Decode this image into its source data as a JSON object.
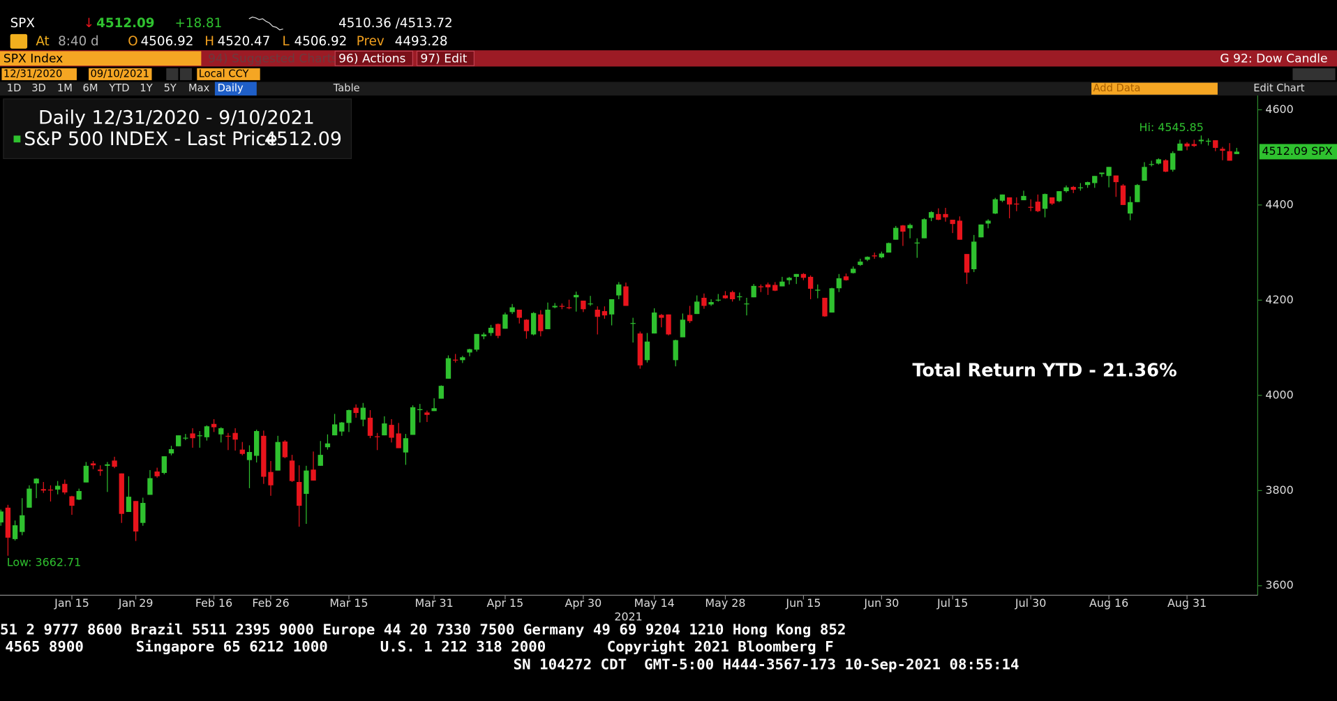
{
  "header": {
    "ticker": "SPX",
    "arrow": "↓",
    "last": "4512.09",
    "change": "+18.81",
    "bid_ask": "4510.36 /4513.72",
    "at": "At",
    "time": "8:40 d",
    "open_label": "O",
    "open": "4506.92",
    "high_label": "H",
    "high": "4520.47",
    "low_label": "L",
    "low": "4506.92",
    "prev_label": "Prev",
    "prev": "4493.28"
  },
  "toolbar": {
    "security": "SPX Index",
    "suggested": "94) Suggested Charts",
    "actions": "96) Actions",
    "edit": "97) Edit",
    "template": "G 92: Dow Candle",
    "start_date": "12/31/2020",
    "end_date": "09/10/2021",
    "currency": "Local CCY",
    "periods": [
      "1D",
      "3D",
      "1M",
      "6M",
      "YTD",
      "1Y",
      "5Y",
      "Max"
    ],
    "frequency": "Daily",
    "table": "Table",
    "add_data": "Add Data",
    "edit_chart": "Edit Chart"
  },
  "chart_data": {
    "type": "candlestick",
    "legend_title": "Daily 12/31/2020 - 9/10/2021",
    "series_name": "S&P 500 INDEX - Last Price",
    "last_value_label": "4512.09",
    "last_price_tag": "4512.09 SPX",
    "hi_label": "Hi: 4545.85",
    "low_label": "Low: 3662.71",
    "annotation": "Total Return YTD - 21.36%",
    "x_year_label": "2021",
    "up_color": "#2fc12f",
    "down_color": "#e8141c",
    "grid": false,
    "ylim": [
      3580,
      4630
    ],
    "yticks": [
      3600,
      3800,
      4000,
      4200,
      4400,
      4600
    ],
    "xticks": [
      {
        "value": "2021-01-15",
        "label": "Jan 15"
      },
      {
        "value": "2021-01-29",
        "label": "Jan 29"
      },
      {
        "value": "2021-02-16",
        "label": "Feb 16"
      },
      {
        "value": "2021-02-26",
        "label": "Feb 26"
      },
      {
        "value": "2021-03-15",
        "label": "Mar 15"
      },
      {
        "value": "2021-03-31",
        "label": "Mar 31"
      },
      {
        "value": "2021-04-15",
        "label": "Apr 15"
      },
      {
        "value": "2021-04-30",
        "label": "Apr 30"
      },
      {
        "value": "2021-05-14",
        "label": "May 14"
      },
      {
        "value": "2021-05-28",
        "label": "May 28"
      },
      {
        "value": "2021-06-15",
        "label": "Jun 15"
      },
      {
        "value": "2021-06-30",
        "label": "Jun 30"
      },
      {
        "value": "2021-07-15",
        "label": "Jul 15"
      },
      {
        "value": "2021-07-30",
        "label": "Jul 30"
      },
      {
        "value": "2021-08-16",
        "label": "Aug 16"
      },
      {
        "value": "2021-08-31",
        "label": "Aug 31"
      }
    ],
    "x": [
      "2020-12-31",
      "2021-01-04",
      "2021-01-05",
      "2021-01-06",
      "2021-01-07",
      "2021-01-08",
      "2021-01-11",
      "2021-01-12",
      "2021-01-13",
      "2021-01-14",
      "2021-01-15",
      "2021-01-19",
      "2021-01-20",
      "2021-01-21",
      "2021-01-22",
      "2021-01-25",
      "2021-01-26",
      "2021-01-27",
      "2021-01-28",
      "2021-01-29",
      "2021-02-01",
      "2021-02-02",
      "2021-02-03",
      "2021-02-04",
      "2021-02-05",
      "2021-02-08",
      "2021-02-09",
      "2021-02-10",
      "2021-02-11",
      "2021-02-12",
      "2021-02-16",
      "2021-02-17",
      "2021-02-18",
      "2021-02-19",
      "2021-02-22",
      "2021-02-23",
      "2021-02-24",
      "2021-02-25",
      "2021-02-26",
      "2021-03-01",
      "2021-03-02",
      "2021-03-03",
      "2021-03-04",
      "2021-03-05",
      "2021-03-08",
      "2021-03-09",
      "2021-03-10",
      "2021-03-11",
      "2021-03-12",
      "2021-03-15",
      "2021-03-16",
      "2021-03-17",
      "2021-03-18",
      "2021-03-19",
      "2021-03-22",
      "2021-03-23",
      "2021-03-24",
      "2021-03-25",
      "2021-03-26",
      "2021-03-29",
      "2021-03-30",
      "2021-03-31",
      "2021-04-01",
      "2021-04-05",
      "2021-04-06",
      "2021-04-07",
      "2021-04-08",
      "2021-04-09",
      "2021-04-12",
      "2021-04-13",
      "2021-04-14",
      "2021-04-15",
      "2021-04-16",
      "2021-04-19",
      "2021-04-20",
      "2021-04-21",
      "2021-04-22",
      "2021-04-23",
      "2021-04-26",
      "2021-04-27",
      "2021-04-28",
      "2021-04-29",
      "2021-04-30",
      "2021-05-03",
      "2021-05-04",
      "2021-05-05",
      "2021-05-06",
      "2021-05-07",
      "2021-05-10",
      "2021-05-11",
      "2021-05-12",
      "2021-05-13",
      "2021-05-14",
      "2021-05-17",
      "2021-05-18",
      "2021-05-19",
      "2021-05-20",
      "2021-05-21",
      "2021-05-24",
      "2021-05-25",
      "2021-05-26",
      "2021-05-27",
      "2021-05-28",
      "2021-06-01",
      "2021-06-02",
      "2021-06-03",
      "2021-06-04",
      "2021-06-07",
      "2021-06-08",
      "2021-06-09",
      "2021-06-10",
      "2021-06-11",
      "2021-06-14",
      "2021-06-15",
      "2021-06-16",
      "2021-06-17",
      "2021-06-18",
      "2021-06-21",
      "2021-06-22",
      "2021-06-23",
      "2021-06-24",
      "2021-06-25",
      "2021-06-28",
      "2021-06-29",
      "2021-06-30",
      "2021-07-01",
      "2021-07-02",
      "2021-07-06",
      "2021-07-07",
      "2021-07-08",
      "2021-07-09",
      "2021-07-12",
      "2021-07-13",
      "2021-07-14",
      "2021-07-15",
      "2021-07-16",
      "2021-07-19",
      "2021-07-20",
      "2021-07-21",
      "2021-07-22",
      "2021-07-23",
      "2021-07-26",
      "2021-07-27",
      "2021-07-28",
      "2021-07-29",
      "2021-07-30",
      "2021-08-02",
      "2021-08-03",
      "2021-08-04",
      "2021-08-05",
      "2021-08-06",
      "2021-08-09",
      "2021-08-10",
      "2021-08-11",
      "2021-08-12",
      "2021-08-13",
      "2021-08-16",
      "2021-08-17",
      "2021-08-18",
      "2021-08-19",
      "2021-08-20",
      "2021-08-23",
      "2021-08-24",
      "2021-08-25",
      "2021-08-26",
      "2021-08-27",
      "2021-08-30",
      "2021-08-31",
      "2021-09-01",
      "2021-09-02",
      "2021-09-03",
      "2021-09-07",
      "2021-09-08",
      "2021-09-09",
      "2021-09-10"
    ],
    "open": [
      3733,
      3764,
      3698,
      3713,
      3764,
      3815,
      3803,
      3802,
      3802,
      3814,
      3788,
      3781,
      3817,
      3857,
      3844,
      3852,
      3863,
      3836,
      3755,
      3778,
      3732,
      3791,
      3840,
      3837,
      3878,
      3893,
      3911,
      3920,
      3916,
      3912,
      3940,
      3918,
      3915,
      3921,
      3886,
      3864,
      3873,
      3915,
      3839,
      3842,
      3903,
      3863,
      3818,
      3793,
      3844,
      3852,
      3891,
      3916,
      3924,
      3942,
      3974,
      3949,
      3953,
      3914,
      3916,
      3938,
      3920,
      3880,
      3917,
      3969,
      3964,
      3967,
      3993,
      4035,
      4075,
      4074,
      4090,
      4096,
      4124,
      4131,
      4150,
      4140,
      4175,
      4180,
      4159,
      4128,
      4170,
      4139,
      4185,
      4188,
      4185,
      4206,
      4199,
      4192,
      4180,
      4177,
      4170,
      4210,
      4229,
      4151,
      4130,
      4074,
      4130,
      4169,
      4170,
      4074,
      4122,
      4169,
      4171,
      4205,
      4191,
      4201,
      4210,
      4217,
      4207,
      4192,
      4206,
      4229,
      4233,
      4232,
      4229,
      4242,
      4249,
      4255,
      4249,
      4220,
      4205,
      4174,
      4225,
      4250,
      4257,
      4274,
      4285,
      4294,
      4290,
      4300,
      4327,
      4357,
      4351,
      4321,
      4330,
      4373,
      4381,
      4381,
      4369,
      4367,
      4297,
      4265,
      4332,
      4361,
      4382,
      4409,
      4416,
      4403,
      4410,
      4396,
      4407,
      4392,
      4416,
      4408,
      4429,
      4438,
      4437,
      4442,
      4446,
      4465,
      4461,
      4462,
      4441,
      4382,
      4406,
      4451,
      4485,
      4487,
      4494,
      4474,
      4514,
      4529,
      4528,
      4534,
      4533,
      4536,
      4518,
      4513,
      4507
    ],
    "high": [
      3760,
      3770,
      3737,
      3784,
      3811,
      3826,
      3818,
      3811,
      3820,
      3823,
      3789,
      3804,
      3860,
      3862,
      3853,
      3860,
      3871,
      3836,
      3830,
      3778,
      3785,
      3843,
      3848,
      3872,
      3894,
      3916,
      3919,
      3931,
      3925,
      3937,
      3950,
      3933,
      3921,
      3931,
      3902,
      3895,
      3928,
      3926,
      3862,
      3915,
      3906,
      3875,
      3853,
      3852,
      3882,
      3904,
      3918,
      3961,
      3944,
      3970,
      3981,
      3984,
      3969,
      3921,
      3956,
      3950,
      3942,
      3919,
      3979,
      3982,
      3968,
      3994,
      4021,
      4084,
      4087,
      4083,
      4098,
      4129,
      4132,
      4148,
      4151,
      4174,
      4192,
      4180,
      4160,
      4175,
      4179,
      4195,
      4194,
      4193,
      4201,
      4218,
      4199,
      4209,
      4187,
      4187,
      4202,
      4238,
      4237,
      4163,
      4134,
      4131,
      4183,
      4171,
      4170,
      4117,
      4172,
      4188,
      4210,
      4214,
      4202,
      4213,
      4219,
      4220,
      4216,
      4205,
      4234,
      4233,
      4237,
      4238,
      4249,
      4249,
      4255,
      4257,
      4252,
      4233,
      4205,
      4226,
      4255,
      4256,
      4271,
      4287,
      4292,
      4300,
      4302,
      4321,
      4356,
      4358,
      4361,
      4330,
      4372,
      4387,
      4393,
      4394,
      4369,
      4376,
      4297,
      4337,
      4359,
      4370,
      4415,
      4422,
      4416,
      4416,
      4430,
      4412,
      4422,
      4424,
      4416,
      4429,
      4441,
      4440,
      4446,
      4449,
      4461,
      4468,
      4480,
      4462,
      4444,
      4418,
      4444,
      4490,
      4493,
      4498,
      4496,
      4513,
      4537,
      4532,
      4537,
      4546,
      4540,
      4536,
      4522,
      4530,
      4520
    ],
    "low": [
      3726,
      3663,
      3695,
      3706,
      3764,
      3784,
      3795,
      3777,
      3792,
      3792,
      3749,
      3780,
      3817,
      3845,
      3831,
      3797,
      3847,
      3732,
      3755,
      3694,
      3726,
      3791,
      3827,
      3834,
      3874,
      3893,
      3906,
      3890,
      3890,
      3905,
      3923,
      3901,
      3885,
      3884,
      3874,
      3805,
      3859,
      3814,
      3789,
      3842,
      3868,
      3818,
      3724,
      3730,
      3821,
      3852,
      3886,
      3916,
      3915,
      3923,
      3953,
      3935,
      3910,
      3885,
      3916,
      3901,
      3889,
      3854,
      3917,
      3943,
      3944,
      3967,
      3993,
      4035,
      4069,
      4068,
      4082,
      4092,
      4118,
      4125,
      4120,
      4140,
      4171,
      4151,
      4119,
      4126,
      4124,
      4139,
      4183,
      4181,
      4181,
      4176,
      4175,
      4188,
      4128,
      4161,
      4147,
      4202,
      4188,
      4111,
      4056,
      4069,
      4130,
      4143,
      4126,
      4061,
      4122,
      4152,
      4171,
      4182,
      4188,
      4197,
      4203,
      4197,
      4199,
      4168,
      4206,
      4217,
      4211,
      4219,
      4229,
      4233,
      4234,
      4242,
      4202,
      4204,
      4165,
      4174,
      4217,
      4241,
      4256,
      4272,
      4282,
      4287,
      4288,
      4300,
      4327,
      4314,
      4330,
      4289,
      4330,
      4366,
      4368,
      4365,
      4341,
      4327,
      4234,
      4259,
      4332,
      4351,
      4381,
      4406,
      4372,
      4387,
      4410,
      4387,
      4385,
      4374,
      4400,
      4406,
      4426,
      4425,
      4430,
      4436,
      4436,
      4459,
      4437,
      4417,
      4400,
      4368,
      4406,
      4451,
      4481,
      4485,
      4469,
      4470,
      4514,
      4515,
      4522,
      4528,
      4525,
      4513,
      4494,
      4493,
      4507
    ],
    "close": [
      3756,
      3701,
      3727,
      3748,
      3804,
      3825,
      3800,
      3801,
      3810,
      3796,
      3768,
      3799,
      3852,
      3853,
      3841,
      3855,
      3850,
      3751,
      3787,
      3714,
      3774,
      3826,
      3830,
      3872,
      3887,
      3916,
      3911,
      3910,
      3916,
      3935,
      3933,
      3931,
      3914,
      3907,
      3877,
      3881,
      3925,
      3829,
      3811,
      3902,
      3870,
      3820,
      3768,
      3842,
      3821,
      3875,
      3899,
      3939,
      3943,
      3969,
      3963,
      3974,
      3915,
      3913,
      3941,
      3911,
      3889,
      3910,
      3975,
      3971,
      3959,
      3973,
      4020,
      4078,
      4074,
      4080,
      4097,
      4129,
      4128,
      4142,
      4125,
      4170,
      4185,
      4163,
      4135,
      4173,
      4135,
      4180,
      4188,
      4187,
      4183,
      4211,
      4181,
      4193,
      4165,
      4168,
      4202,
      4233,
      4188,
      4152,
      4063,
      4113,
      4174,
      4163,
      4128,
      4116,
      4159,
      4156,
      4197,
      4188,
      4196,
      4201,
      4204,
      4202,
      4208,
      4193,
      4230,
      4227,
      4227,
      4220,
      4239,
      4247,
      4255,
      4247,
      4224,
      4222,
      4166,
      4225,
      4246,
      4242,
      4266,
      4281,
      4291,
      4292,
      4298,
      4320,
      4352,
      4344,
      4358,
      4321,
      4370,
      4385,
      4369,
      4374,
      4360,
      4327,
      4258,
      4323,
      4359,
      4367,
      4412,
      4422,
      4401,
      4401,
      4419,
      4395,
      4387,
      4423,
      4403,
      4429,
      4437,
      4432,
      4437,
      4448,
      4461,
      4468,
      4480,
      4448,
      4400,
      4406,
      4442,
      4480,
      4486,
      4496,
      4470,
      4509,
      4529,
      4523,
      4524,
      4537,
      4535,
      4520,
      4514,
      4493,
      4512
    ]
  },
  "footer": {
    "lines": [
      "51 2 9777 8600 Brazil 5511 2395 9000 Europe 44 20 7330 7500 Germany 49 69 9204 1210 Hong Kong 852",
      "4565 8900      Singapore 65 6212 1000      U.S. 1 212 318 2000       Copyright 2021 Bloomberg F",
      "SN 104272 CDT  GMT-5:00 H444-3567-173 10-Sep-2021 08:55:14"
    ]
  }
}
